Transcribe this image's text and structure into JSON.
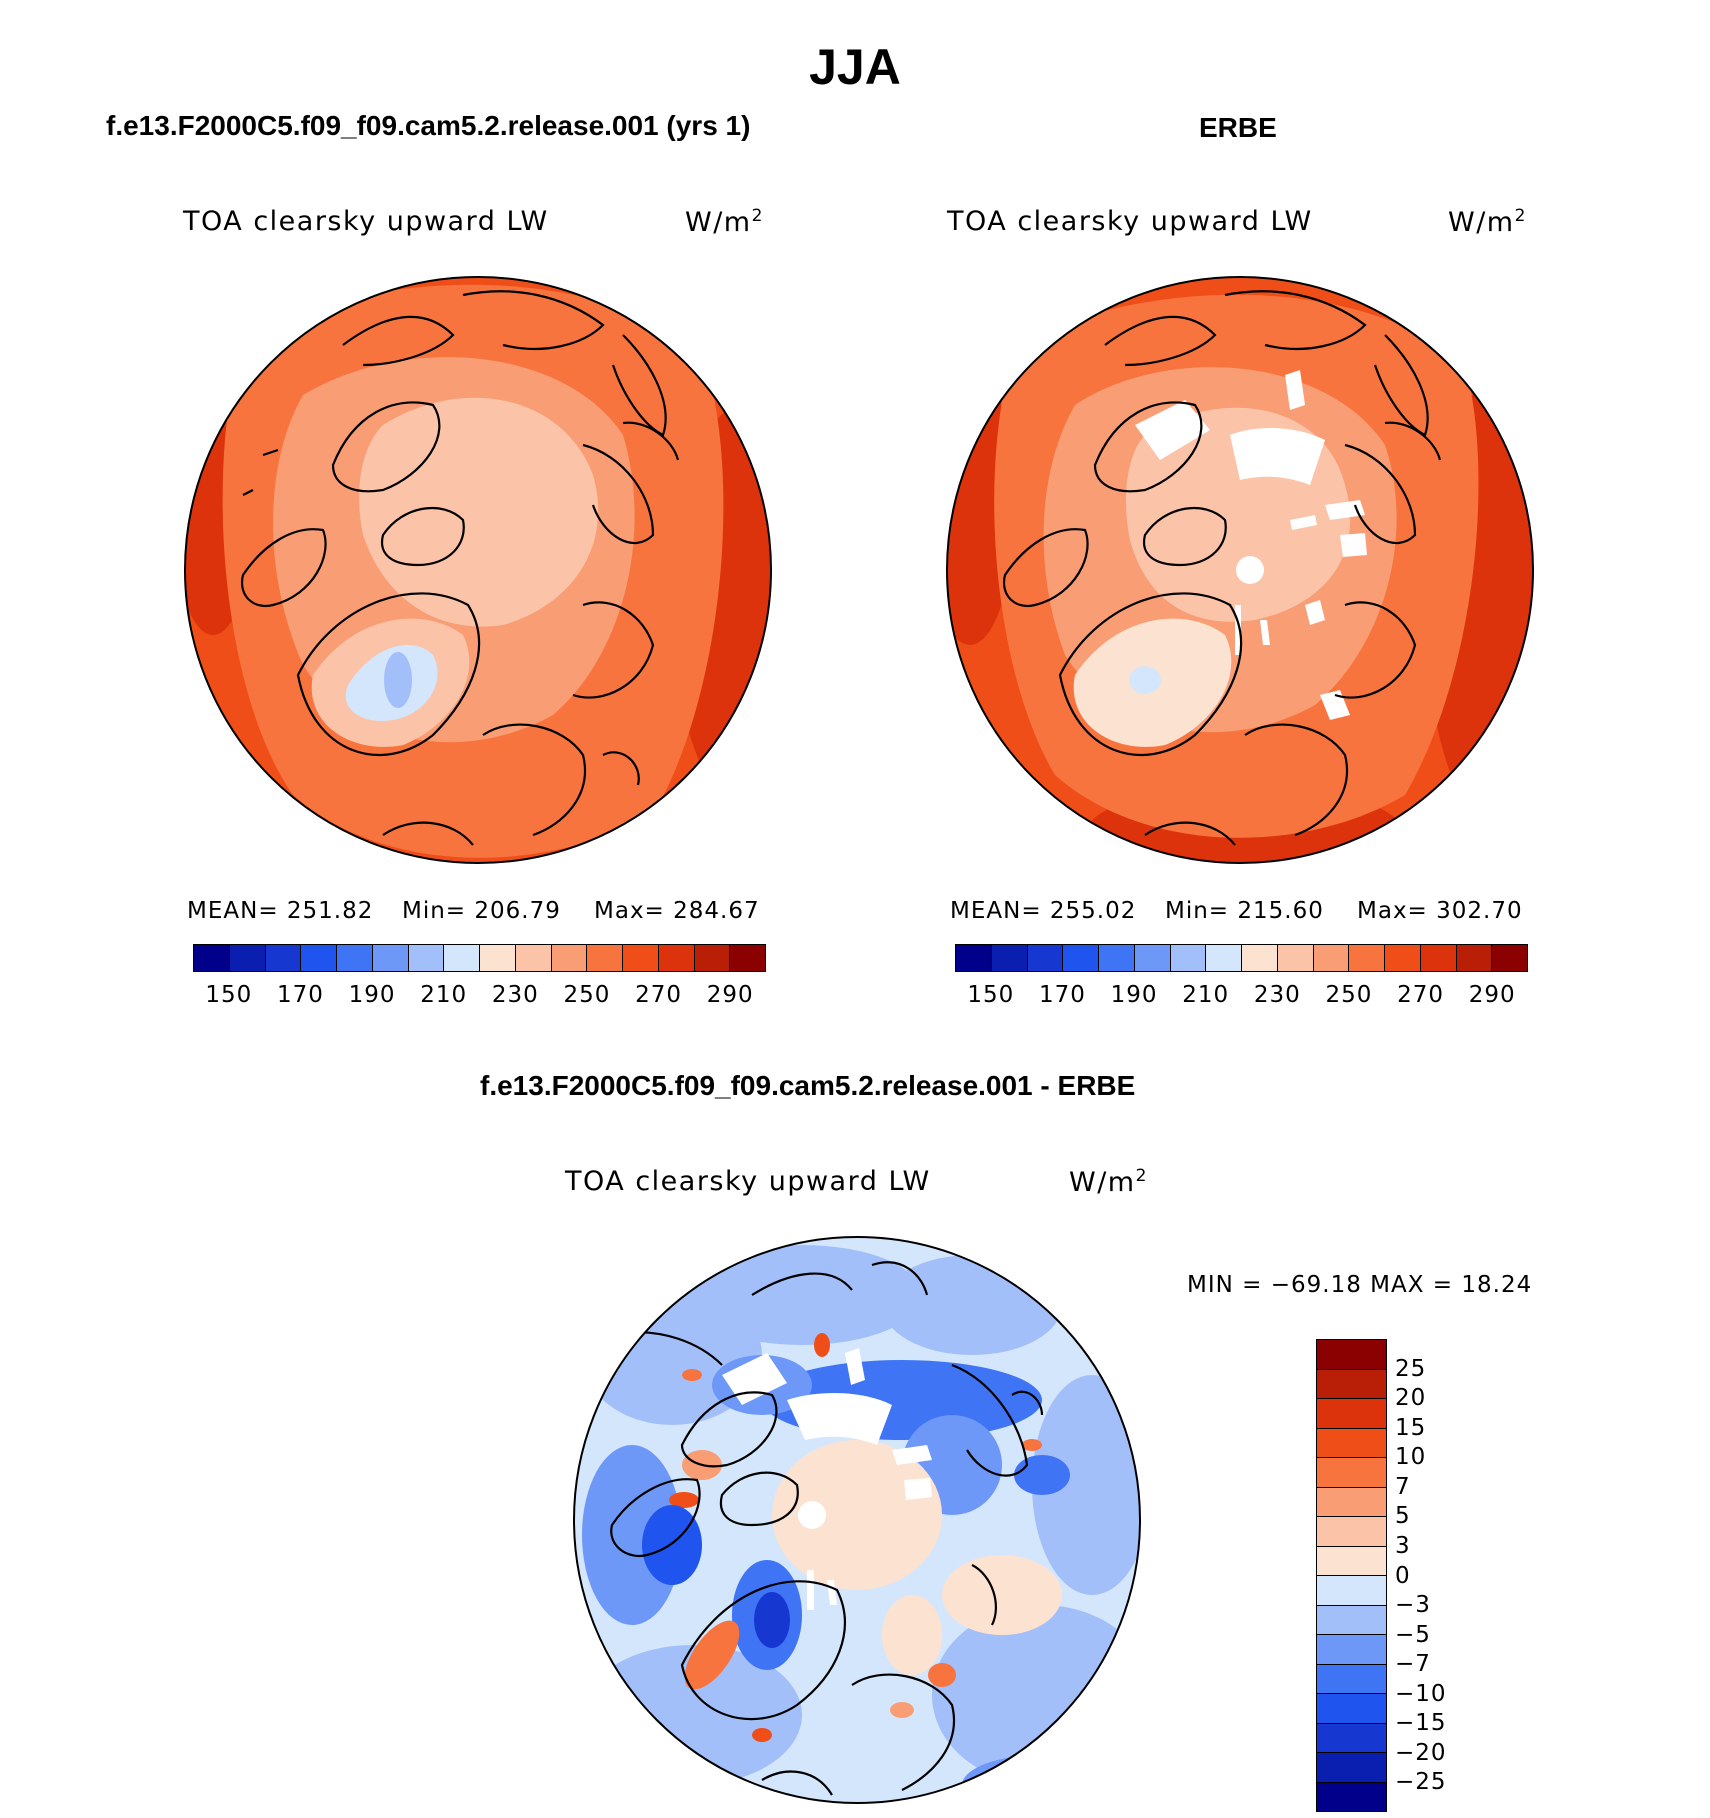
{
  "title": "JJA",
  "panels": {
    "model": {
      "case_title": "f.e13.F2000C5.f09_f09.cam5.2.release.001 (yrs 1)",
      "label": "TOA clearsky upward LW",
      "units": "W/m",
      "units_sup": "2",
      "mean": "MEAN= 251.82",
      "min": "Min= 206.79",
      "max": "Max= 284.67"
    },
    "obs": {
      "case_title": "ERBE",
      "label": "TOA clearsky upward LW",
      "units": "W/m",
      "units_sup": "2",
      "mean": "MEAN= 255.02",
      "min": "Min= 215.60",
      "max": "Max= 302.70"
    },
    "diff": {
      "case_title": "f.e13.F2000C5.f09_f09.cam5.2.release.001 - ERBE",
      "label": "TOA clearsky upward LW",
      "units": "W/m",
      "units_sup": "2",
      "minmax": "MIN = −69.18 MAX =   18.24"
    }
  },
  "abs_colorbar": {
    "colors": [
      "#00008b",
      "#0a1fb0",
      "#1638d0",
      "#1f55ee",
      "#3f74f4",
      "#6e98f8",
      "#a3bff9",
      "#d4e6fb",
      "#fce3d1",
      "#fbc4a8",
      "#f99d75",
      "#f8743e",
      "#f04e18",
      "#dd330c",
      "#b81f06",
      "#8b0000"
    ],
    "tick_labels": [
      "150",
      "170",
      "190",
      "210",
      "230",
      "250",
      "270",
      "290"
    ]
  },
  "diff_colorbar": {
    "colors": [
      "#8b0000",
      "#b81f06",
      "#dd330c",
      "#f04e18",
      "#f8743e",
      "#f99d75",
      "#fbc4a8",
      "#fce3d1",
      "#d4e6fb",
      "#a3bff9",
      "#6e98f8",
      "#3f74f4",
      "#1f55ee",
      "#1638d0",
      "#0a1fb0",
      "#00008b"
    ],
    "tick_labels": [
      "25",
      "20",
      "15",
      "10",
      "7",
      "5",
      "3",
      "0",
      "−3",
      "−5",
      "−7",
      "−10",
      "−15",
      "−20",
      "−25"
    ]
  }
}
